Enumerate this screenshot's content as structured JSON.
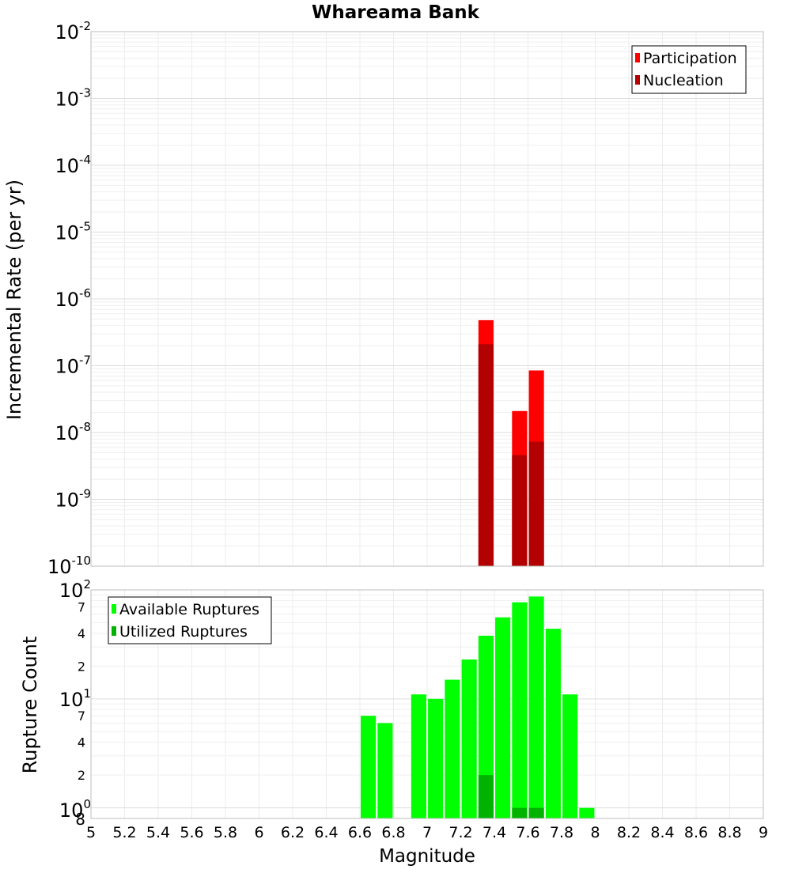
{
  "chart_data": [
    {
      "type": "bar",
      "title": "Whareama Bank",
      "ylabel": "Incremental Rate (per yr)",
      "yscale": "log",
      "ylim": [
        1e-10,
        0.01
      ],
      "xlim": [
        5,
        9
      ],
      "y_ticks": [
        {
          "base": "10",
          "exp": "-10"
        },
        {
          "base": "10",
          "exp": "-9"
        },
        {
          "base": "10",
          "exp": "-8"
        },
        {
          "base": "10",
          "exp": "-7"
        },
        {
          "base": "10",
          "exp": "-6"
        },
        {
          "base": "10",
          "exp": "-5"
        },
        {
          "base": "10",
          "exp": "-4"
        },
        {
          "base": "10",
          "exp": "-3"
        },
        {
          "base": "10",
          "exp": "-2"
        }
      ],
      "legend": {
        "position": "top-right",
        "entries": [
          {
            "label": "Participation",
            "color": "#ff0000"
          },
          {
            "label": "Nucleation",
            "color": "#b30000"
          }
        ]
      },
      "bar_width": 0.09,
      "series": [
        {
          "name": "Participation",
          "color": "#ff0000",
          "x": [
            7.35,
            7.55,
            7.65
          ],
          "values": [
            4.8e-07,
            2.1e-08,
            8.5e-08
          ]
        },
        {
          "name": "Nucleation",
          "color": "#b30000",
          "x": [
            7.35,
            7.55,
            7.65
          ],
          "values": [
            2.1e-07,
            4.6e-09,
            7.3e-09
          ]
        }
      ]
    },
    {
      "type": "bar",
      "xlabel": "Magnitude",
      "ylabel": "Rupture Count",
      "yscale": "log",
      "ylim": [
        0.8,
        100
      ],
      "xlim": [
        5,
        9
      ],
      "x_ticks": [
        "5",
        "5.2",
        "5.4",
        "5.6",
        "5.8",
        "6",
        "6.2",
        "6.4",
        "6.6",
        "6.8",
        "7",
        "7.2",
        "7.4",
        "7.6",
        "7.8",
        "8",
        "8.2",
        "8.4",
        "8.6",
        "8.8",
        "9"
      ],
      "y_major_ticks": [
        {
          "value": 1,
          "base": "10",
          "exp": "0"
        },
        {
          "value": 10,
          "base": "10",
          "exp": "1"
        },
        {
          "value": 100,
          "base": "10",
          "exp": "2"
        }
      ],
      "y_minor_labels": [
        {
          "value": 0.8,
          "label": "8"
        },
        {
          "value": 2,
          "label": "2"
        },
        {
          "value": 4,
          "label": "4"
        },
        {
          "value": 7,
          "label": "7"
        },
        {
          "value": 20,
          "label": "2"
        },
        {
          "value": 40,
          "label": "4"
        },
        {
          "value": 70,
          "label": "7"
        }
      ],
      "legend": {
        "position": "top-left",
        "entries": [
          {
            "label": "Available Ruptures",
            "color": "#00ff00"
          },
          {
            "label": "Utilized Ruptures",
            "color": "#00b300"
          }
        ]
      },
      "bar_width": 0.09,
      "series": [
        {
          "name": "Available Ruptures",
          "color": "#00ff00",
          "x": [
            6.65,
            6.75,
            6.95,
            7.05,
            7.15,
            7.25,
            7.35,
            7.45,
            7.55,
            7.65,
            7.75,
            7.85,
            7.95
          ],
          "values": [
            7,
            6,
            11,
            10,
            15,
            23,
            38,
            56,
            77,
            87,
            44,
            11,
            1
          ]
        },
        {
          "name": "Utilized Ruptures",
          "color": "#00b300",
          "x": [
            7.35,
            7.55,
            7.65
          ],
          "values": [
            2,
            1,
            1
          ]
        }
      ]
    }
  ]
}
